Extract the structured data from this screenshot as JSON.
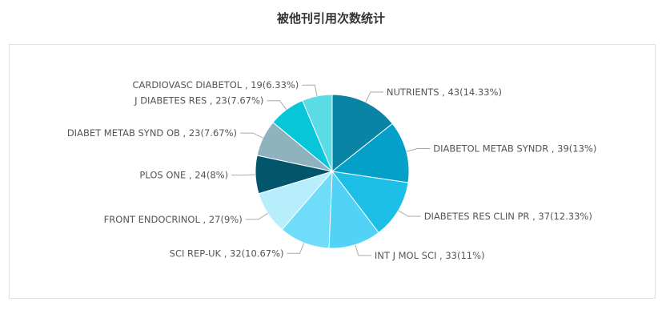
{
  "title": "被他刊引用次数统计",
  "chart_data": {
    "type": "pie",
    "title": "被他刊引用次数统计",
    "slices": [
      {
        "label": "NUTRIENTS , 43(14.33%)",
        "value": 43,
        "color": "#0a84a5"
      },
      {
        "label": "DIABETOL METAB SYNDR , 39(13%)",
        "value": 39,
        "color": "#05a0c9"
      },
      {
        "label": "DIABETES RES CLIN PR , 37(12.33%)",
        "value": 37,
        "color": "#1ebfe6"
      },
      {
        "label": "INT J MOL SCI , 33(11%)",
        "value": 33,
        "color": "#52d2f7"
      },
      {
        "label": "SCI REP-UK , 32(10.67%)",
        "value": 32,
        "color": "#6fdcf9"
      },
      {
        "label": "FRONT ENDOCRINOL , 27(9%)",
        "value": 27,
        "color": "#b7eefc"
      },
      {
        "label": "PLOS ONE , 24(8%)",
        "value": 24,
        "color": "#02566c"
      },
      {
        "label": "DIABET METAB SYND OB , 23(7.67%)",
        "value": 23,
        "color": "#8fb3be"
      },
      {
        "label": "J DIABETES RES , 23(7.67%)",
        "value": 23,
        "color": "#06c6d8"
      },
      {
        "label": "CARDIOVASC DIABETOL , 19(6.33%)",
        "value": 19,
        "color": "#5adbe6"
      }
    ]
  }
}
